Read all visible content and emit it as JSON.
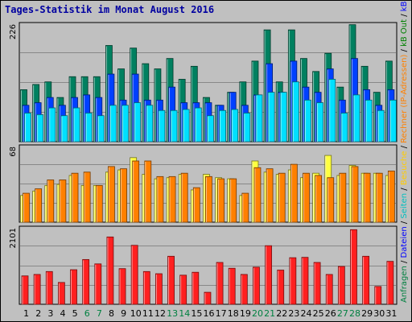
{
  "title": "Tages-Statistik im Monat August 2016",
  "legend": {
    "top_labels": [
      {
        "text": "Anfragen",
        "color": "#008040"
      },
      {
        "text": " / ",
        "color": "#000000"
      },
      {
        "text": "Dateien",
        "color": "#0000ff"
      },
      {
        "text": " / ",
        "color": "#000000"
      },
      {
        "text": "Seiten",
        "color": "#00bfbf"
      },
      {
        "text": " / ",
        "color": "#000000"
      },
      {
        "text": "Besuche",
        "color": "#ffcc00"
      },
      {
        "text": " / ",
        "color": "#000000"
      },
      {
        "text": "Rechner (IP-Adressen)",
        "color": "#ff8000"
      },
      {
        "text": " / ",
        "color": "#000000"
      },
      {
        "text": "kB Out",
        "color": "#008000"
      },
      {
        "text": " / ",
        "color": "#000000"
      },
      {
        "text": "kB In",
        "color": "#0000ff"
      },
      {
        "text": " / ",
        "color": "#000000"
      },
      {
        "text": "kB F",
        "color": "#ff0000"
      }
    ]
  },
  "chart_data": [
    {
      "type": "bar",
      "panel": "top",
      "ymax_label": "226",
      "ylim": [
        0,
        226
      ],
      "categories": [
        "1",
        "2",
        "3",
        "4",
        "5",
        "6",
        "7",
        "8",
        "9",
        "10",
        "11",
        "12",
        "13",
        "14",
        "15",
        "16",
        "17",
        "18",
        "19",
        "20",
        "21",
        "22",
        "23",
        "24",
        "25",
        "26",
        "27",
        "28",
        "29",
        "30",
        "31"
      ],
      "series": [
        {
          "name": "Anfragen",
          "color": "#008060",
          "values": [
            100,
            110,
            115,
            85,
            125,
            125,
            125,
            185,
            140,
            180,
            150,
            140,
            160,
            120,
            145,
            85,
            70,
            95,
            115,
            155,
            215,
            115,
            215,
            160,
            135,
            170,
            105,
            225,
            145,
            95,
            155
          ]
        },
        {
          "name": "Dateien",
          "color": "#0040ff",
          "values": [
            70,
            75,
            85,
            70,
            85,
            90,
            85,
            130,
            80,
            130,
            80,
            80,
            105,
            75,
            75,
            75,
            70,
            95,
            70,
            90,
            150,
            95,
            155,
            105,
            95,
            140,
            80,
            160,
            100,
            70,
            100
          ]
        },
        {
          "name": "Seiten",
          "color": "#00e0ff",
          "values": [
            55,
            52,
            65,
            50,
            65,
            55,
            50,
            70,
            70,
            75,
            70,
            60,
            60,
            62,
            65,
            50,
            60,
            62,
            55,
            90,
            95,
            95,
            115,
            80,
            75,
            120,
            55,
            90,
            80,
            60,
            80
          ]
        }
      ]
    },
    {
      "type": "bar",
      "panel": "middle",
      "ymax_label": "68",
      "ylim": [
        0,
        68
      ],
      "categories": [
        "1",
        "2",
        "3",
        "4",
        "5",
        "6",
        "7",
        "8",
        "9",
        "10",
        "11",
        "12",
        "13",
        "14",
        "15",
        "16",
        "17",
        "18",
        "19",
        "20",
        "21",
        "22",
        "23",
        "24",
        "25",
        "26",
        "27",
        "28",
        "29",
        "30",
        "31"
      ],
      "series": [
        {
          "name": "Besuche",
          "color": "#ffff40",
          "values": [
            24,
            28,
            33,
            34,
            42,
            33,
            33,
            45,
            47,
            58,
            43,
            39,
            40,
            43,
            29,
            43,
            40,
            39,
            24,
            55,
            45,
            43,
            47,
            40,
            44,
            60,
            42,
            51,
            44,
            44,
            42
          ]
        },
        {
          "name": "Rechner",
          "color": "#ff8000",
          "values": [
            26,
            30,
            38,
            38,
            44,
            45,
            33,
            50,
            48,
            55,
            55,
            41,
            41,
            44,
            31,
            41,
            39,
            39,
            26,
            49,
            48,
            44,
            52,
            44,
            42,
            40,
            44,
            50,
            44,
            44,
            46
          ]
        }
      ]
    },
    {
      "type": "bar",
      "panel": "bottom",
      "ymax_label": "2101",
      "ylim": [
        0,
        2101
      ],
      "categories": [
        "1",
        "2",
        "3",
        "4",
        "5",
        "6",
        "7",
        "8",
        "9",
        "10",
        "11",
        "12",
        "13",
        "14",
        "15",
        "16",
        "17",
        "18",
        "19",
        "20",
        "21",
        "22",
        "23",
        "24",
        "25",
        "26",
        "27",
        "28",
        "29",
        "30",
        "31"
      ],
      "series": [
        {
          "name": "kB F",
          "color": "#ff2020",
          "values": [
            780,
            820,
            900,
            600,
            950,
            1230,
            1110,
            1850,
            980,
            1620,
            900,
            840,
            1320,
            800,
            880,
            330,
            1150,
            990,
            820,
            1020,
            1610,
            940,
            1280,
            1290,
            1150,
            820,
            1040,
            2050,
            1320,
            490,
            1180
          ]
        }
      ]
    }
  ],
  "x_labels": [
    {
      "text": "1",
      "color": "#000000"
    },
    {
      "text": "2",
      "color": "#000000"
    },
    {
      "text": "3",
      "color": "#000000"
    },
    {
      "text": "4",
      "color": "#000000"
    },
    {
      "text": "5",
      "color": "#000000"
    },
    {
      "text": "6",
      "color": "#008040"
    },
    {
      "text": "7",
      "color": "#008040"
    },
    {
      "text": "8",
      "color": "#000000"
    },
    {
      "text": "9",
      "color": "#000000"
    },
    {
      "text": "10",
      "color": "#000000"
    },
    {
      "text": "11",
      "color": "#000000"
    },
    {
      "text": "12",
      "color": "#000000"
    },
    {
      "text": "13",
      "color": "#008040"
    },
    {
      "text": "14",
      "color": "#008040"
    },
    {
      "text": "15",
      "color": "#000000"
    },
    {
      "text": "16",
      "color": "#000000"
    },
    {
      "text": "17",
      "color": "#000000"
    },
    {
      "text": "18",
      "color": "#000000"
    },
    {
      "text": "19",
      "color": "#000000"
    },
    {
      "text": "20",
      "color": "#008040"
    },
    {
      "text": "21",
      "color": "#008040"
    },
    {
      "text": "22",
      "color": "#000000"
    },
    {
      "text": "23",
      "color": "#000000"
    },
    {
      "text": "24",
      "color": "#000000"
    },
    {
      "text": "25",
      "color": "#000000"
    },
    {
      "text": "26",
      "color": "#000000"
    },
    {
      "text": "27",
      "color": "#008040"
    },
    {
      "text": "28",
      "color": "#008040"
    },
    {
      "text": "29",
      "color": "#000000"
    },
    {
      "text": "30",
      "color": "#000000"
    },
    {
      "text": "31",
      "color": "#000000"
    }
  ]
}
